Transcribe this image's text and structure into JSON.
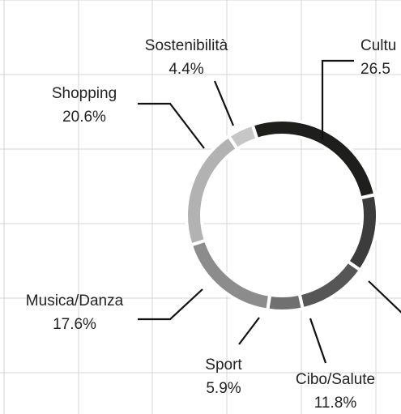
{
  "chart_data": {
    "type": "donut",
    "categories": [
      "Cultu",
      null,
      "Cibo/Salute",
      "Sport",
      "Musica/Danza",
      "Shopping",
      "Sostenibilità"
    ],
    "values": [
      26.5,
      13.2,
      11.8,
      5.9,
      17.6,
      20.6,
      4.4
    ],
    "value_labels": [
      "26.5",
      null,
      "11.8%",
      "5.9%",
      "17.6%",
      "20.6%",
      "4.4%"
    ],
    "colors": [
      "#1e1e1c",
      "#3c3c3c",
      "#565656",
      "#707070",
      "#8c8c8c",
      "#b2b2b2",
      "#c6c6c6"
    ],
    "grid": true
  }
}
